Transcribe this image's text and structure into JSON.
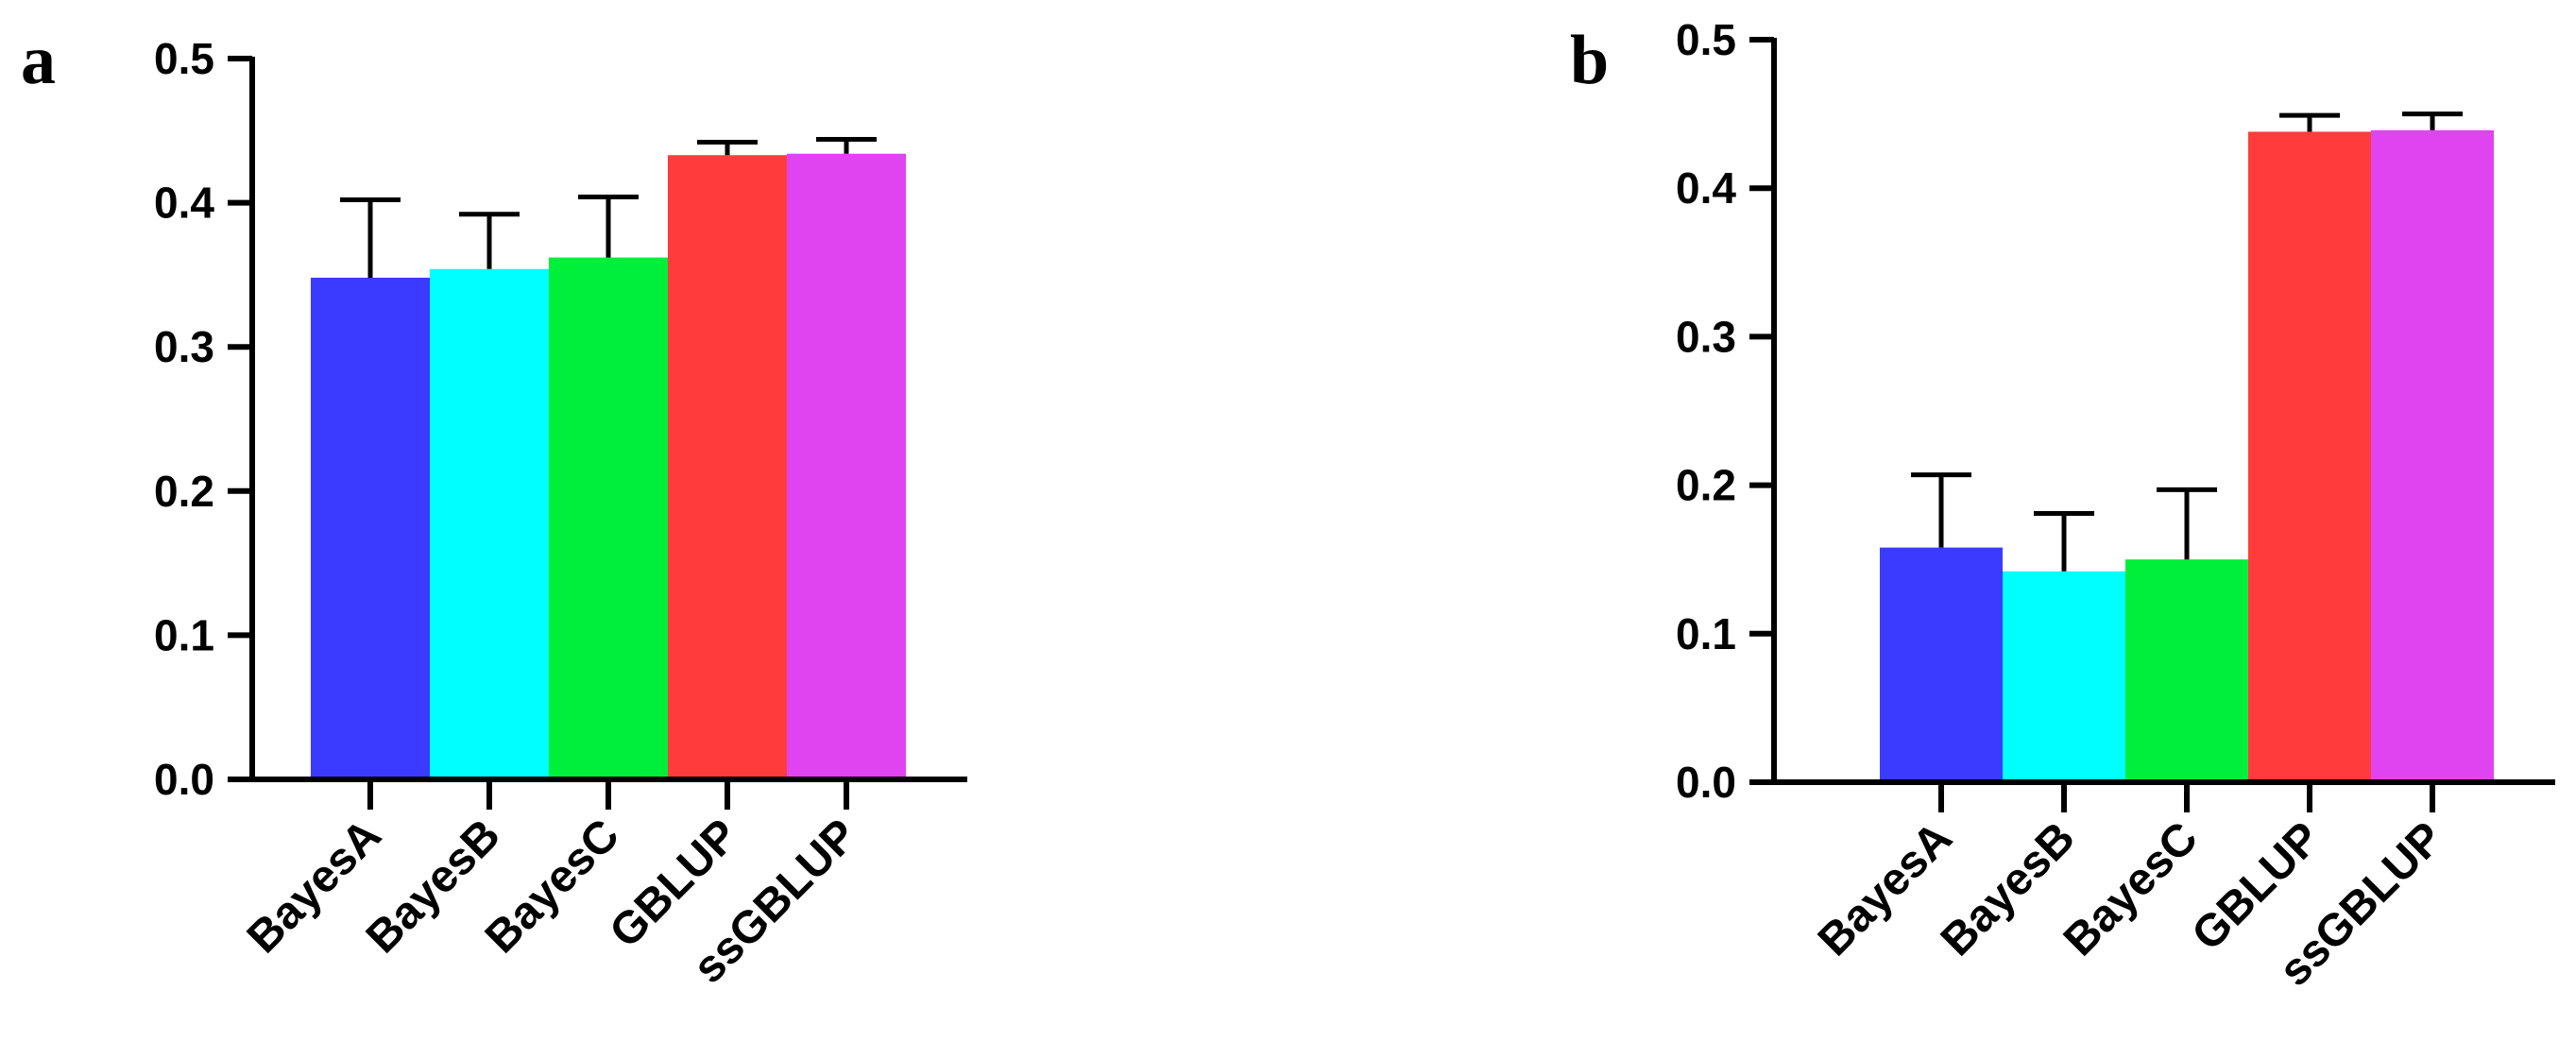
{
  "chart_data": [
    {
      "type": "bar",
      "panel_label": "a",
      "categories": [
        "BayesA",
        "BayesB",
        "BayesC",
        "GBLUP",
        "ssGBLUP"
      ],
      "values": [
        0.348,
        0.354,
        0.362,
        0.433,
        0.434
      ],
      "error_upper": [
        0.402,
        0.392,
        0.404,
        0.442,
        0.444
      ],
      "ylim": [
        0,
        0.5
      ],
      "yticks": [
        "0.0",
        "0.1",
        "0.2",
        "0.3",
        "0.4",
        "0.5"
      ],
      "colors": [
        "#3b3bff",
        "#00ffff",
        "#00ef3a",
        "#ff3b3b",
        "#e043f0"
      ],
      "grid": false,
      "title": "",
      "xlabel": "",
      "ylabel": ""
    },
    {
      "type": "bar",
      "panel_label": "b",
      "categories": [
        "BayesA",
        "BayesB",
        "BayesC",
        "GBLUP",
        "ssGBLUP"
      ],
      "values": [
        0.158,
        0.142,
        0.15,
        0.438,
        0.439
      ],
      "error_upper": [
        0.207,
        0.181,
        0.197,
        0.449,
        0.45
      ],
      "ylim": [
        0,
        0.5
      ],
      "yticks": [
        "0.0",
        "0.1",
        "0.2",
        "0.3",
        "0.4",
        "0.5"
      ],
      "colors": [
        "#3b3bff",
        "#00ffff",
        "#00ef3a",
        "#ff3b3b",
        "#e043f0"
      ],
      "grid": false,
      "title": "",
      "xlabel": "",
      "ylabel": ""
    }
  ]
}
